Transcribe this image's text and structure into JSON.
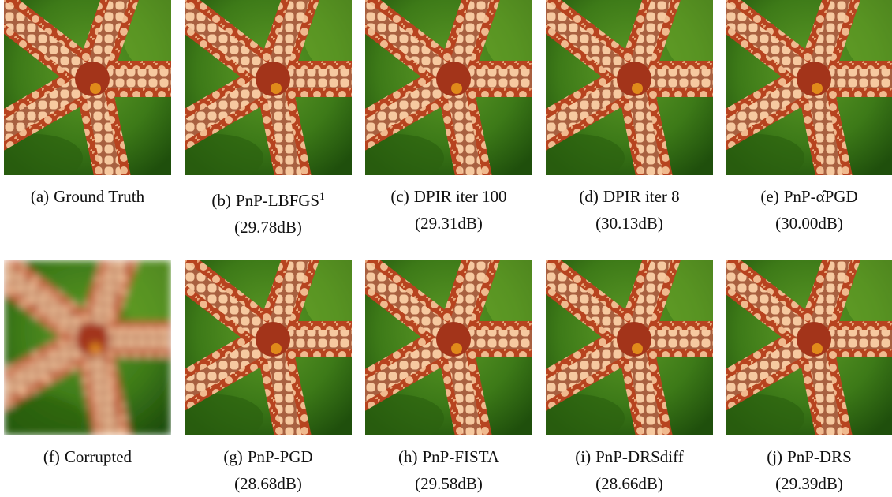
{
  "figures": [
    {
      "label": "(a)",
      "name": "Ground Truth"
    },
    {
      "label": "(b)",
      "name": "PnP-LBFGS",
      "footnote": "1",
      "psnr": "(29.78dB)"
    },
    {
      "label": "(c)",
      "name": "DPIR iter 100",
      "psnr": "(29.31dB)"
    },
    {
      "label": "(d)",
      "name": "DPIR iter 8",
      "psnr": "(30.13dB)"
    },
    {
      "label": "(e)",
      "name": "PnP-α̂PGD",
      "psnr": "(30.00dB)"
    },
    {
      "label": "(f)",
      "name": "Corrupted",
      "blurred": true
    },
    {
      "label": "(g)",
      "name": "PnP-PGD",
      "psnr": "(28.68dB)"
    },
    {
      "label": "(h)",
      "name": "PnP-FISTA",
      "psnr": "(29.58dB)"
    },
    {
      "label": "(i)",
      "name": "PnP-DRSdiff",
      "psnr": "(28.66dB)"
    },
    {
      "label": "(j)",
      "name": "PnP-DRS",
      "psnr": "(29.39dB)"
    }
  ]
}
